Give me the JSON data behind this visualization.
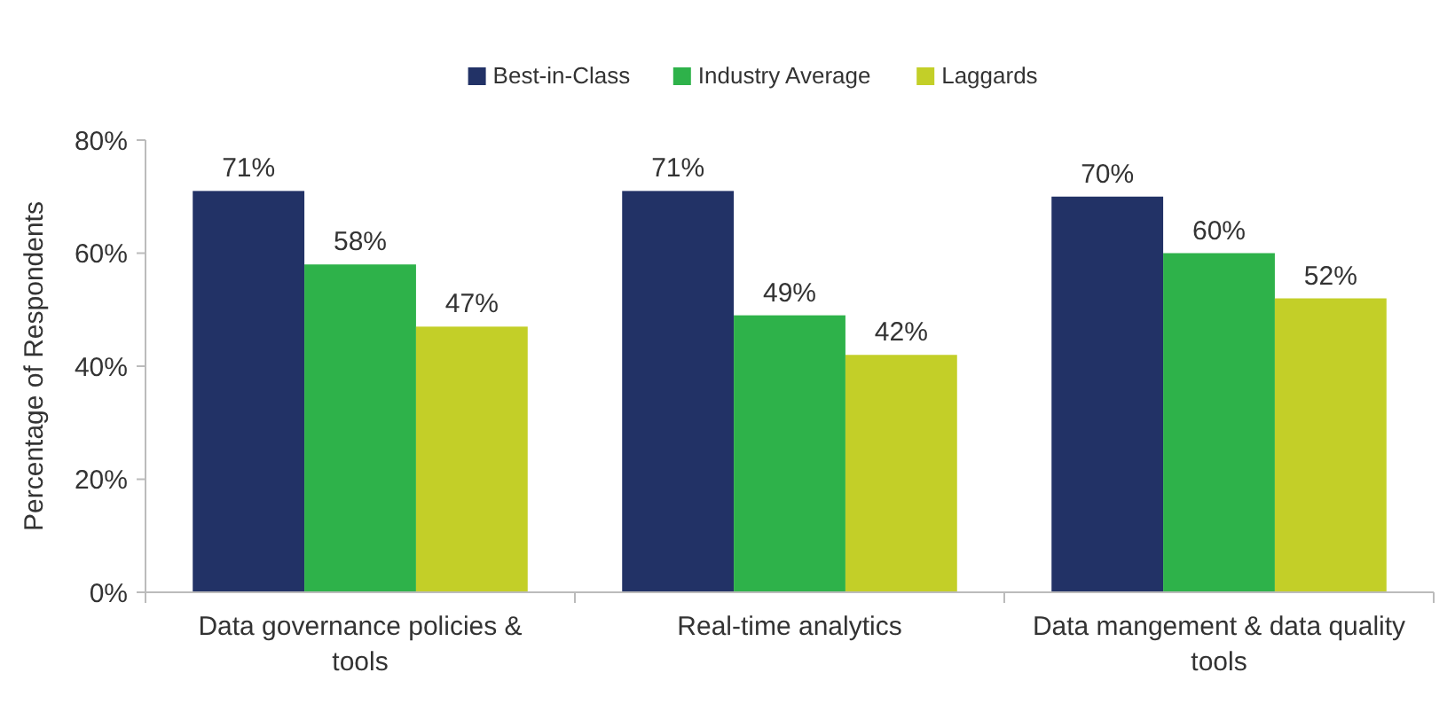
{
  "chart_data": {
    "type": "bar",
    "ylabel": "Percentage of Respondents",
    "categories": [
      "Data governance policies & tools",
      "Real-time analytics",
      "Data mangement & data quality tools"
    ],
    "series": [
      {
        "name": "Best-in-Class",
        "color": "#223266",
        "values": [
          71,
          71,
          70
        ],
        "value_labels": [
          "71%",
          "71%",
          "70%"
        ]
      },
      {
        "name": "Industry Average",
        "color": "#2eb24a",
        "values": [
          58,
          49,
          60
        ],
        "value_labels": [
          "58%",
          "49%",
          "60%"
        ]
      },
      {
        "name": "Laggards",
        "color": "#c3cf28",
        "values": [
          47,
          42,
          52
        ],
        "value_labels": [
          "47%",
          "42%",
          "52%"
        ]
      }
    ],
    "ylim": [
      0,
      80
    ],
    "yticks": [
      {
        "value": 0,
        "label": "0%"
      },
      {
        "value": 20,
        "label": "20%"
      },
      {
        "value": 40,
        "label": "40%"
      },
      {
        "value": 60,
        "label": "60%"
      },
      {
        "value": 80,
        "label": "80%"
      }
    ],
    "grid": false,
    "legend": "top"
  }
}
